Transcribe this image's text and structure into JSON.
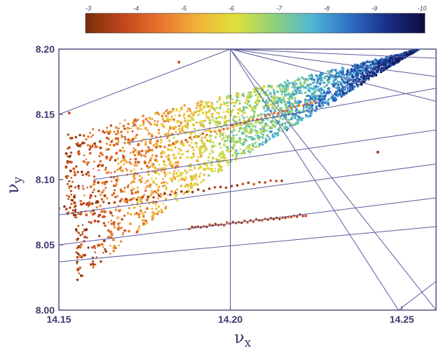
{
  "chart_data": {
    "type": "scatter",
    "title": "",
    "xlabel": {
      "symbol": "ν",
      "subscript": "x"
    },
    "ylabel": {
      "symbol": "ν",
      "subscript": "y"
    },
    "xlim": [
      14.15,
      14.26
    ],
    "ylim": [
      8.0,
      8.2
    ],
    "x_ticks": [
      {
        "value": 14.15,
        "label": "14.15"
      },
      {
        "value": 14.2,
        "label": "14.20"
      },
      {
        "value": 14.25,
        "label": "14.25"
      }
    ],
    "y_ticks": [
      {
        "value": 8.0,
        "label": "8.00"
      },
      {
        "value": 8.05,
        "label": "8.05"
      },
      {
        "value": 8.1,
        "label": "8.10"
      },
      {
        "value": 8.15,
        "label": "8.15"
      },
      {
        "value": 8.2,
        "label": "8.20"
      }
    ],
    "grid": false,
    "colorbar": {
      "location": "top",
      "min": -10,
      "max": -3,
      "ticks": [
        {
          "value": -3,
          "label": "-3"
        },
        {
          "value": -4,
          "label": "-4"
        },
        {
          "value": -5,
          "label": "-5"
        },
        {
          "value": -6,
          "label": "-6"
        },
        {
          "value": -7,
          "label": "-7"
        },
        {
          "value": -8,
          "label": "-8"
        },
        {
          "value": -9,
          "label": "-9"
        },
        {
          "value": -10,
          "label": "-10"
        }
      ],
      "colors": [
        "#7a2e08",
        "#c2461c",
        "#e8752e",
        "#f0b43a",
        "#dfe03a",
        "#8fd07a",
        "#4fb8d6",
        "#2f6fc4",
        "#1a2f86",
        "#0b0b3e"
      ]
    },
    "resonance_lines": [
      {
        "from": [
          14.15,
          8.15
        ],
        "to": [
          14.2,
          8.2
        ]
      },
      {
        "from": [
          14.2,
          8.2
        ],
        "to": [
          14.2,
          8.0
        ]
      },
      {
        "from": [
          14.2,
          8.2
        ],
        "to": [
          14.26,
          8.193
        ]
      },
      {
        "from": [
          14.2,
          8.2
        ],
        "to": [
          14.26,
          8.179
        ]
      },
      {
        "from": [
          14.2,
          8.2
        ],
        "to": [
          14.26,
          8.16
        ]
      },
      {
        "from": [
          14.2,
          8.2
        ],
        "to": [
          14.26,
          8.0
        ]
      },
      {
        "from": [
          14.2,
          8.2
        ],
        "to": [
          14.249,
          8.0
        ]
      },
      {
        "from": [
          14.249,
          8.0
        ],
        "to": [
          14.26,
          8.022
        ]
      },
      {
        "from": [
          14.15,
          8.037
        ],
        "to": [
          14.26,
          8.064
        ]
      },
      {
        "from": [
          14.15,
          8.05
        ],
        "to": [
          14.26,
          8.086
        ]
      },
      {
        "from": [
          14.15,
          8.073
        ],
        "to": [
          14.26,
          8.112
        ]
      },
      {
        "from": [
          14.16,
          8.1
        ],
        "to": [
          14.26,
          8.138
        ]
      },
      {
        "from": [
          14.17,
          8.128
        ],
        "to": [
          14.26,
          8.17
        ]
      }
    ],
    "scatter_region": {
      "description_values": "Points fill a wedge from (14.150, 8.07-8.13) widening toward apex near (14.255, 8.200); color encodes diffusion exponent",
      "lower_edge": [
        [
          14.155,
          8.022
        ],
        [
          14.255,
          8.2
        ]
      ],
      "upper_edge": [
        [
          14.15,
          8.135
        ],
        [
          14.255,
          8.2
        ]
      ],
      "left_edge": [
        [
          14.15,
          8.065
        ],
        [
          14.15,
          8.135
        ]
      ],
      "point_count": 2800,
      "highlight_lines": [
        {
          "from": [
            14.15,
            8.078
          ],
          "to": [
            14.215,
            8.1
          ],
          "value": -3.6
        },
        {
          "from": [
            14.188,
            8.063
          ],
          "to": [
            14.222,
            8.073
          ],
          "value": -3.8
        },
        {
          "from": [
            14.176,
            8.122
          ],
          "to": [
            14.225,
            8.16
          ],
          "value": -4.5
        }
      ],
      "outliers": [
        {
          "x": 14.153,
          "y": 8.151,
          "value": -4
        },
        {
          "x": 14.243,
          "y": 8.121,
          "value": -3.5
        },
        {
          "x": 14.185,
          "y": 8.19,
          "value": -4
        }
      ]
    }
  }
}
